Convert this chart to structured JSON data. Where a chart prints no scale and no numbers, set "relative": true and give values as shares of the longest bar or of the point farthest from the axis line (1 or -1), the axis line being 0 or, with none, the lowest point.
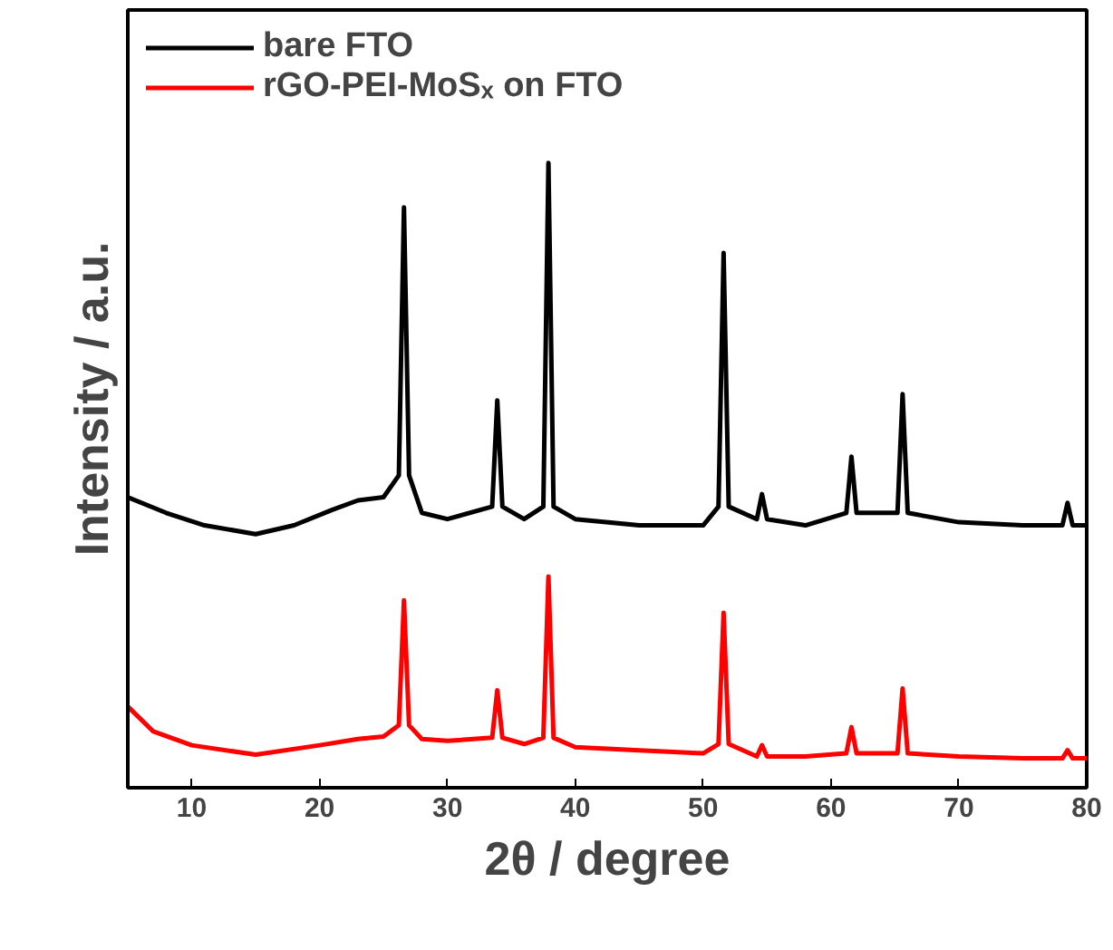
{
  "chart_data": {
    "type": "line",
    "relative": true,
    "xlabel": "2θ / degree",
    "ylabel": "Intensity / a.u.",
    "xlim": [
      5,
      80
    ],
    "xticks": [
      10,
      20,
      30,
      40,
      50,
      60,
      70,
      80
    ],
    "tick_labels": "x",
    "grid": false,
    "legend": "top left",
    "line_style": "solid",
    "marker": "none",
    "series": [
      {
        "name": "bare FTO",
        "color": "#000000",
        "x": [
          5,
          8,
          11,
          15,
          18,
          21,
          23,
          25,
          26.2,
          26.6,
          27.0,
          28,
          30,
          33.5,
          33.9,
          34.3,
          36,
          37.5,
          37.9,
          38.3,
          40,
          45,
          50,
          51.2,
          51.6,
          52.0,
          54.2,
          54.6,
          55.0,
          58,
          61.2,
          61.6,
          62.0,
          65.2,
          65.6,
          66.0,
          70,
          75,
          78.1,
          78.5,
          78.9,
          80
        ],
        "values": [
          0.465,
          0.44,
          0.42,
          0.406,
          0.42,
          0.445,
          0.46,
          0.465,
          0.5,
          0.929,
          0.5,
          0.44,
          0.43,
          0.45,
          0.62,
          0.45,
          0.43,
          0.45,
          1.0,
          0.45,
          0.43,
          0.42,
          0.42,
          0.45,
          0.856,
          0.45,
          0.43,
          0.47,
          0.43,
          0.42,
          0.44,
          0.53,
          0.44,
          0.44,
          0.63,
          0.44,
          0.425,
          0.42,
          0.42,
          0.456,
          0.42,
          0.42
        ]
      },
      {
        "name": "rGO-PEI-MoSₓ on FTO",
        "color": "#ff0000",
        "x": [
          5,
          7,
          10,
          15,
          20,
          23,
          25,
          26.2,
          26.6,
          27.0,
          28,
          30,
          33.5,
          33.9,
          34.3,
          36,
          37.5,
          37.9,
          38.3,
          40,
          45,
          50,
          51.2,
          51.6,
          52.0,
          54.2,
          54.6,
          55.0,
          58,
          61.2,
          61.6,
          62.0,
          65.2,
          65.6,
          66.0,
          70,
          75,
          78.1,
          78.5,
          78.9,
          80
        ],
        "values": [
          0.13,
          0.09,
          0.068,
          0.053,
          0.068,
          0.078,
          0.082,
          0.1,
          0.3,
          0.1,
          0.078,
          0.075,
          0.08,
          0.156,
          0.08,
          0.07,
          0.08,
          0.338,
          0.08,
          0.065,
          0.06,
          0.055,
          0.07,
          0.28,
          0.07,
          0.05,
          0.068,
          0.05,
          0.05,
          0.055,
          0.097,
          0.055,
          0.055,
          0.159,
          0.055,
          0.05,
          0.047,
          0.047,
          0.06,
          0.047,
          0.047
        ]
      }
    ]
  }
}
